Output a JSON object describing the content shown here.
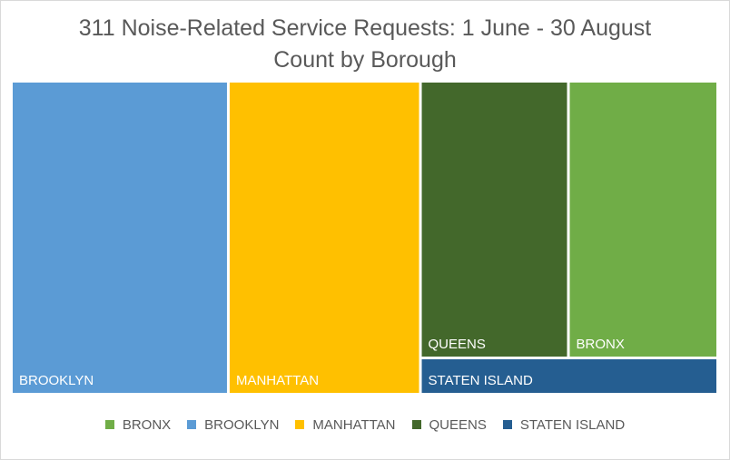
{
  "chart_data": {
    "type": "treemap",
    "title": "311 Noise-Related Service Requests: 1 June - 30 August",
    "subtitle": "Count by Borough",
    "categories": [
      "BROOKLYN",
      "MANHATTAN",
      "QUEENS",
      "BRONX",
      "STATEN ISLAND"
    ],
    "values": [
      110,
      98,
      67,
      67,
      17
    ],
    "colors": {
      "BRONX": "#70ad47",
      "BROOKLYN": "#5b9bd5",
      "MANHATTAN": "#ffc000",
      "QUEENS": "#43682b",
      "STATEN ISLAND": "#255e91"
    },
    "legend": {
      "position": "bottom",
      "entries": [
        "BRONX",
        "BROOKLYN",
        "MANHATTAN",
        "QUEENS",
        "STATEN ISLAND"
      ]
    }
  }
}
